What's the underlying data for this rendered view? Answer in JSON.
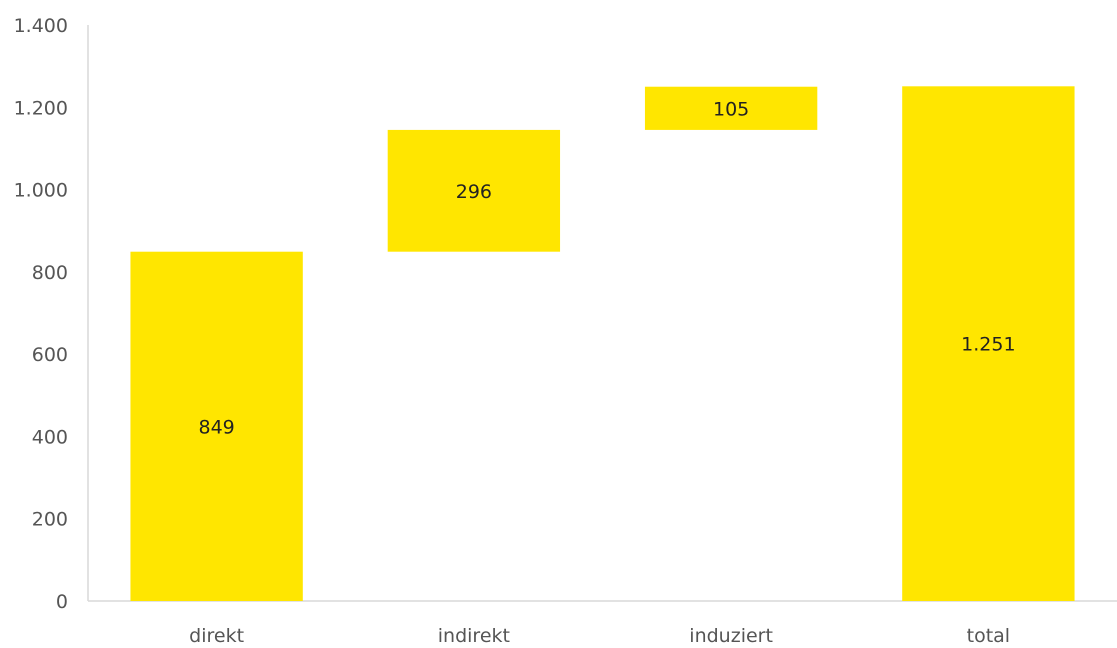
{
  "chart_data": {
    "type": "bar",
    "subtype": "waterfall",
    "categories": [
      "direkt",
      "indirekt",
      "induziert",
      "total"
    ],
    "values": [
      849,
      296,
      105,
      1251
    ],
    "bases": [
      0,
      849,
      1145,
      0
    ],
    "data_labels": [
      "849",
      "296",
      "105",
      "1.251"
    ],
    "yticks": [
      {
        "value": 0,
        "label": "0"
      },
      {
        "value": 200,
        "label": "200"
      },
      {
        "value": 400,
        "label": "400"
      },
      {
        "value": 600,
        "label": "600"
      },
      {
        "value": 800,
        "label": "800"
      },
      {
        "value": 1000,
        "label": "1.000"
      },
      {
        "value": 1200,
        "label": "1.200"
      },
      {
        "value": 1400,
        "label": "1.400"
      }
    ],
    "ylim": [
      0,
      1400
    ],
    "grid": false,
    "bar_color": "#FFE600",
    "axis_color": "#D9D9D9",
    "title": "",
    "xlabel": "",
    "ylabel": ""
  }
}
